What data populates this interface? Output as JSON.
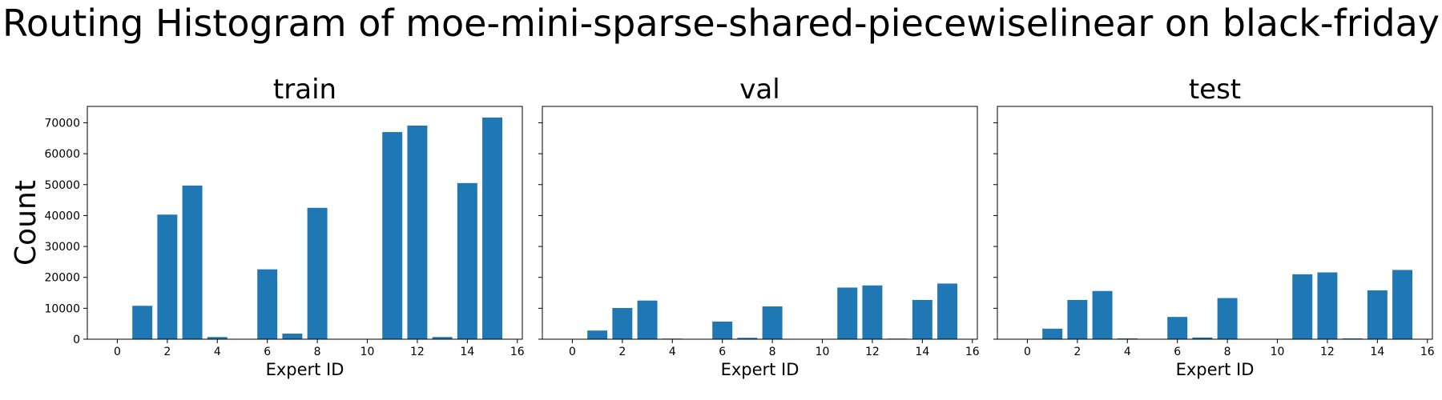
{
  "figure": {
    "suptitle": "Routing Histogram of moe-mini-sparse-shared-piecewiselinear on black-friday",
    "shared_ylabel": "Count",
    "bar_color": "#1f77b4"
  },
  "chart_data": [
    {
      "type": "bar",
      "title": "train",
      "xlabel": "Expert ID",
      "ylabel": "Count",
      "categories": [
        0,
        1,
        2,
        3,
        4,
        5,
        6,
        7,
        8,
        9,
        10,
        11,
        12,
        13,
        14,
        15
      ],
      "values": [
        0,
        10800,
        40300,
        49700,
        700,
        0,
        22600,
        1800,
        42500,
        0,
        0,
        67000,
        69100,
        700,
        50500,
        71700
      ],
      "xlim": [
        -1.2,
        16.2
      ],
      "ylim": [
        0,
        75300
      ],
      "xticks": [
        0,
        2,
        4,
        6,
        8,
        10,
        12,
        14,
        16
      ],
      "yticks": [
        0,
        10000,
        20000,
        30000,
        40000,
        50000,
        60000,
        70000
      ],
      "grid": false
    },
    {
      "type": "bar",
      "title": "val",
      "xlabel": "Expert ID",
      "categories": [
        0,
        1,
        2,
        3,
        4,
        5,
        6,
        7,
        8,
        9,
        10,
        11,
        12,
        13,
        14,
        15
      ],
      "values": [
        0,
        2800,
        10100,
        12500,
        200,
        0,
        5700,
        450,
        10600,
        0,
        0,
        16700,
        17400,
        200,
        12700,
        18000
      ],
      "xlim": [
        -1.2,
        16.2
      ],
      "ylim": [
        0,
        75300
      ],
      "xticks": [
        0,
        2,
        4,
        6,
        8,
        10,
        12,
        14,
        16
      ],
      "grid": false
    },
    {
      "type": "bar",
      "title": "test",
      "xlabel": "Expert ID",
      "categories": [
        0,
        1,
        2,
        3,
        4,
        5,
        6,
        7,
        8,
        9,
        10,
        11,
        12,
        13,
        14,
        15
      ],
      "values": [
        0,
        3400,
        12700,
        15600,
        250,
        0,
        7200,
        550,
        13300,
        0,
        0,
        21000,
        21600,
        250,
        15800,
        22400
      ],
      "xlim": [
        -1.2,
        16.2
      ],
      "ylim": [
        0,
        75300
      ],
      "xticks": [
        0,
        2,
        4,
        6,
        8,
        10,
        12,
        14,
        16
      ],
      "grid": false
    }
  ]
}
